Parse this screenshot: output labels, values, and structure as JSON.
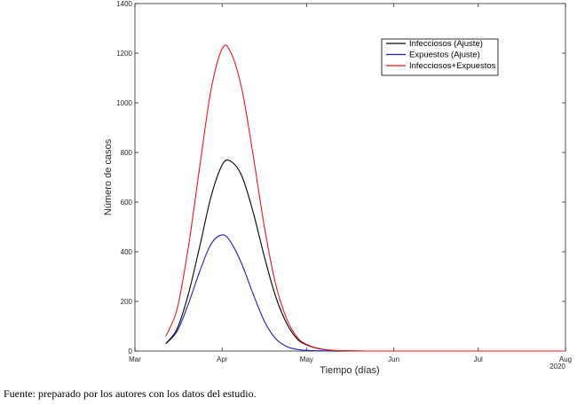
{
  "caption": "Fuente: preparado por los autores con los datos del estudio.",
  "colors": {
    "infecciosos": "#000000",
    "expuestos": "#1f1fbf",
    "suma": "#e8191c",
    "axis": "#262626"
  },
  "chart_data": {
    "type": "line",
    "title": "",
    "xlabel": "Tiempo (días)",
    "ylabel": "Número de casos",
    "ylim": [
      0,
      1400
    ],
    "yticks": [
      0,
      200,
      400,
      600,
      800,
      1000,
      1200,
      1400
    ],
    "xlim": [
      "2020-03-01",
      "2020-08-01"
    ],
    "xticks": [
      {
        "date": "2020-03-01",
        "label": "Mar"
      },
      {
        "date": "2020-04-01",
        "label": "Apr"
      },
      {
        "date": "2020-05-01",
        "label": "May"
      },
      {
        "date": "2020-06-01",
        "label": "Jun"
      },
      {
        "date": "2020-07-01",
        "label": "Jul"
      },
      {
        "date": "2020-08-01",
        "label": "Aug"
      }
    ],
    "x_year_label": "2020",
    "grid": false,
    "legend_position": "top-right",
    "x": [
      "2020-03-12",
      "2020-03-16",
      "2020-03-20",
      "2020-03-24",
      "2020-03-28",
      "2020-04-01",
      "2020-04-04",
      "2020-04-08",
      "2020-04-12",
      "2020-04-16",
      "2020-04-20",
      "2020-04-24",
      "2020-04-28",
      "2020-05-02",
      "2020-05-06",
      "2020-05-10",
      "2020-05-14",
      "2020-05-22",
      "2020-06-01",
      "2020-06-15",
      "2020-07-01",
      "2020-07-20",
      "2020-08-01"
    ],
    "series": [
      {
        "name": "Infecciosos (Ajuste)",
        "color": "#000000",
        "values": [
          30,
          90,
          230,
          420,
          620,
          750,
          765,
          705,
          560,
          380,
          220,
          110,
          45,
          20,
          8,
          3,
          1,
          0,
          0,
          0,
          0,
          0,
          0
        ]
      },
      {
        "name": "Expuestos (Ajuste)",
        "color": "#1f1fbf",
        "values": [
          30,
          80,
          190,
          320,
          430,
          468,
          440,
          350,
          230,
          120,
          50,
          18,
          6,
          2,
          1,
          0,
          0,
          0,
          0,
          0,
          0,
          0,
          0
        ]
      },
      {
        "name": "Infecciosos+Expuestos",
        "color": "#e8191c",
        "values": [
          60,
          170,
          420,
          740,
          1050,
          1218,
          1205,
          1055,
          790,
          500,
          270,
          128,
          51,
          22,
          9,
          3,
          1,
          0,
          0,
          0,
          0,
          0,
          0
        ]
      }
    ]
  }
}
